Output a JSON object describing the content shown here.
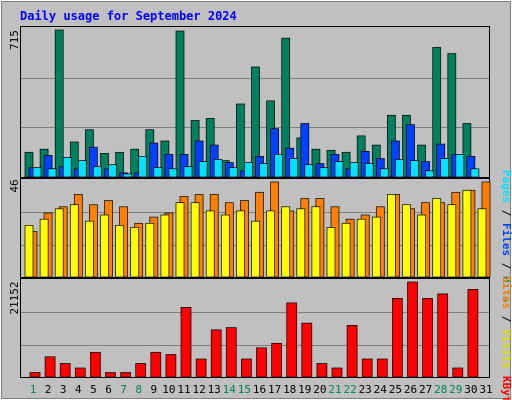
{
  "chart_data": [
    {
      "type": "bar",
      "title": "Daily usage for September 2024",
      "panel": "hits-files-pages",
      "ymax_label": "715",
      "ylim": [
        0,
        715
      ],
      "categories": [
        "1",
        "2",
        "3",
        "4",
        "5",
        "6",
        "7",
        "8",
        "9",
        "10",
        "11",
        "12",
        "13",
        "14",
        "15",
        "16",
        "17",
        "18",
        "19",
        "20",
        "21",
        "22",
        "23",
        "24",
        "25",
        "26",
        "27",
        "28",
        "29",
        "30",
        "31"
      ],
      "series": [
        {
          "name": "Hits",
          "color": "#00805c",
          "values": [
            120,
            135,
            715,
            170,
            230,
            115,
            120,
            135,
            230,
            175,
            710,
            275,
            285,
            80,
            355,
            535,
            370,
            675,
            190,
            135,
            130,
            120,
            200,
            155,
            300,
            300,
            155,
            630,
            600,
            260,
            0
          ]
        },
        {
          "name": "Files",
          "color": "#0040ff",
          "values": [
            45,
            105,
            50,
            40,
            145,
            40,
            20,
            20,
            165,
            110,
            110,
            175,
            155,
            70,
            30,
            100,
            235,
            140,
            260,
            65,
            110,
            40,
            125,
            90,
            175,
            255,
            75,
            160,
            110,
            100,
            0
          ]
        },
        {
          "name": "Pages",
          "color": "#00e0ff",
          "values": [
            45,
            40,
            95,
            80,
            50,
            60,
            15,
            100,
            45,
            40,
            50,
            75,
            85,
            45,
            70,
            65,
            110,
            90,
            60,
            45,
            75,
            70,
            65,
            40,
            85,
            80,
            30,
            90,
            110,
            40,
            0
          ]
        }
      ],
      "axis_labels": [
        "Pages",
        "Files",
        "Hits"
      ]
    },
    {
      "type": "bar",
      "panel": "visits-sites",
      "ymax_label": "46",
      "ylim": [
        0,
        46
      ],
      "series": [
        {
          "name": "Visits",
          "color": "#ff8000",
          "values": [
            22,
            31,
            34,
            40,
            35,
            37,
            34,
            26,
            29,
            31,
            39,
            40,
            40,
            36,
            37,
            41,
            46,
            32,
            38,
            38,
            34,
            28,
            30,
            34,
            40,
            33,
            36,
            36,
            41,
            42,
            46
          ]
        },
        {
          "name": "Sites",
          "color": "#ffff00",
          "values": [
            25,
            28,
            33,
            35,
            27,
            30,
            25,
            24,
            26,
            30,
            36,
            36,
            32,
            30,
            32,
            27,
            32,
            34,
            33,
            34,
            24,
            26,
            28,
            29,
            40,
            35,
            30,
            38,
            35,
            42,
            33
          ]
        }
      ],
      "axis_labels": [
        "Sites",
        "Visits"
      ]
    },
    {
      "type": "bar",
      "panel": "kbytes",
      "ymax_label": "21152",
      "ylim": [
        0,
        21152
      ],
      "series": [
        {
          "name": "KBytes",
          "color": "#ff0000",
          "values": [
            1000,
            4500,
            3000,
            2000,
            5500,
            1000,
            1000,
            3000,
            5500,
            5000,
            15500,
            4000,
            10500,
            11000,
            4000,
            6500,
            7500,
            16500,
            12000,
            3000,
            2000,
            11500,
            4000,
            4000,
            17500,
            21152,
            17500,
            18500,
            2000,
            19500,
            0
          ]
        }
      ],
      "axis_labels": [
        "KBytes"
      ]
    }
  ],
  "x_tick_colors": {
    "weekday": "#000000",
    "weekend": "#00805c"
  },
  "weekend_days": [
    "1",
    "7",
    "8",
    "14",
    "15",
    "21",
    "22",
    "28",
    "29"
  ],
  "colors": {
    "background": "#c0c0c0",
    "title": "#0000ff"
  }
}
